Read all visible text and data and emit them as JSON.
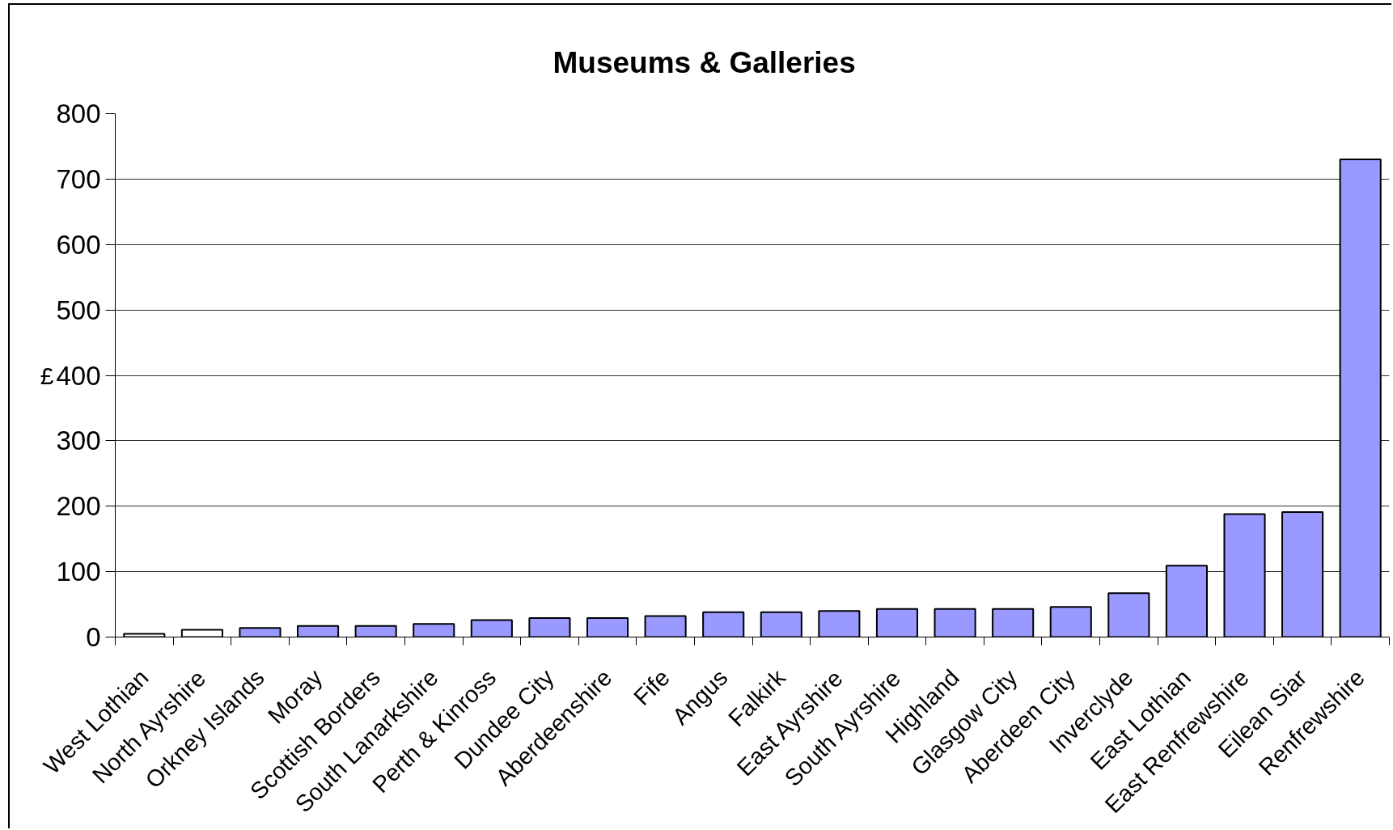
{
  "chart_data": {
    "type": "bar",
    "title": "Museums & Galleries",
    "ylabel": "£",
    "categories": [
      "West Lothian",
      "North Ayrshire",
      "Orkney Islands",
      "Moray",
      "Scottish Borders",
      "South Lanarkshire",
      "Perth & Kinross",
      "Dundee City",
      "Aberdeenshire",
      "Fife",
      "Angus",
      "Falkirk",
      "East Ayrshire",
      "South Ayrshire",
      "Highland",
      "Glasgow City",
      "Aberdeen City",
      "Inverclyde",
      "East Lothian",
      "East Renfrewshire",
      "Eilean Siar",
      "Renfrewshire"
    ],
    "values": [
      5,
      11,
      14,
      17,
      17,
      20,
      26,
      29,
      29,
      32,
      38,
      38,
      40,
      43,
      43,
      43,
      46,
      67,
      109,
      188,
      191,
      730
    ],
    "colors": [
      "#ffffff",
      "#ffffff",
      "#9999ff",
      "#9999ff",
      "#9999ff",
      "#9999ff",
      "#9999ff",
      "#9999ff",
      "#9999ff",
      "#9999ff",
      "#9999ff",
      "#9999ff",
      "#9999ff",
      "#9999ff",
      "#9999ff",
      "#9999ff",
      "#9999ff",
      "#9999ff",
      "#9999ff",
      "#9999ff",
      "#9999ff",
      "#9999ff"
    ],
    "ylim": [
      0,
      800
    ],
    "yticks": [
      0,
      100,
      200,
      300,
      400,
      500,
      600,
      700,
      800
    ],
    "grid": "y"
  }
}
